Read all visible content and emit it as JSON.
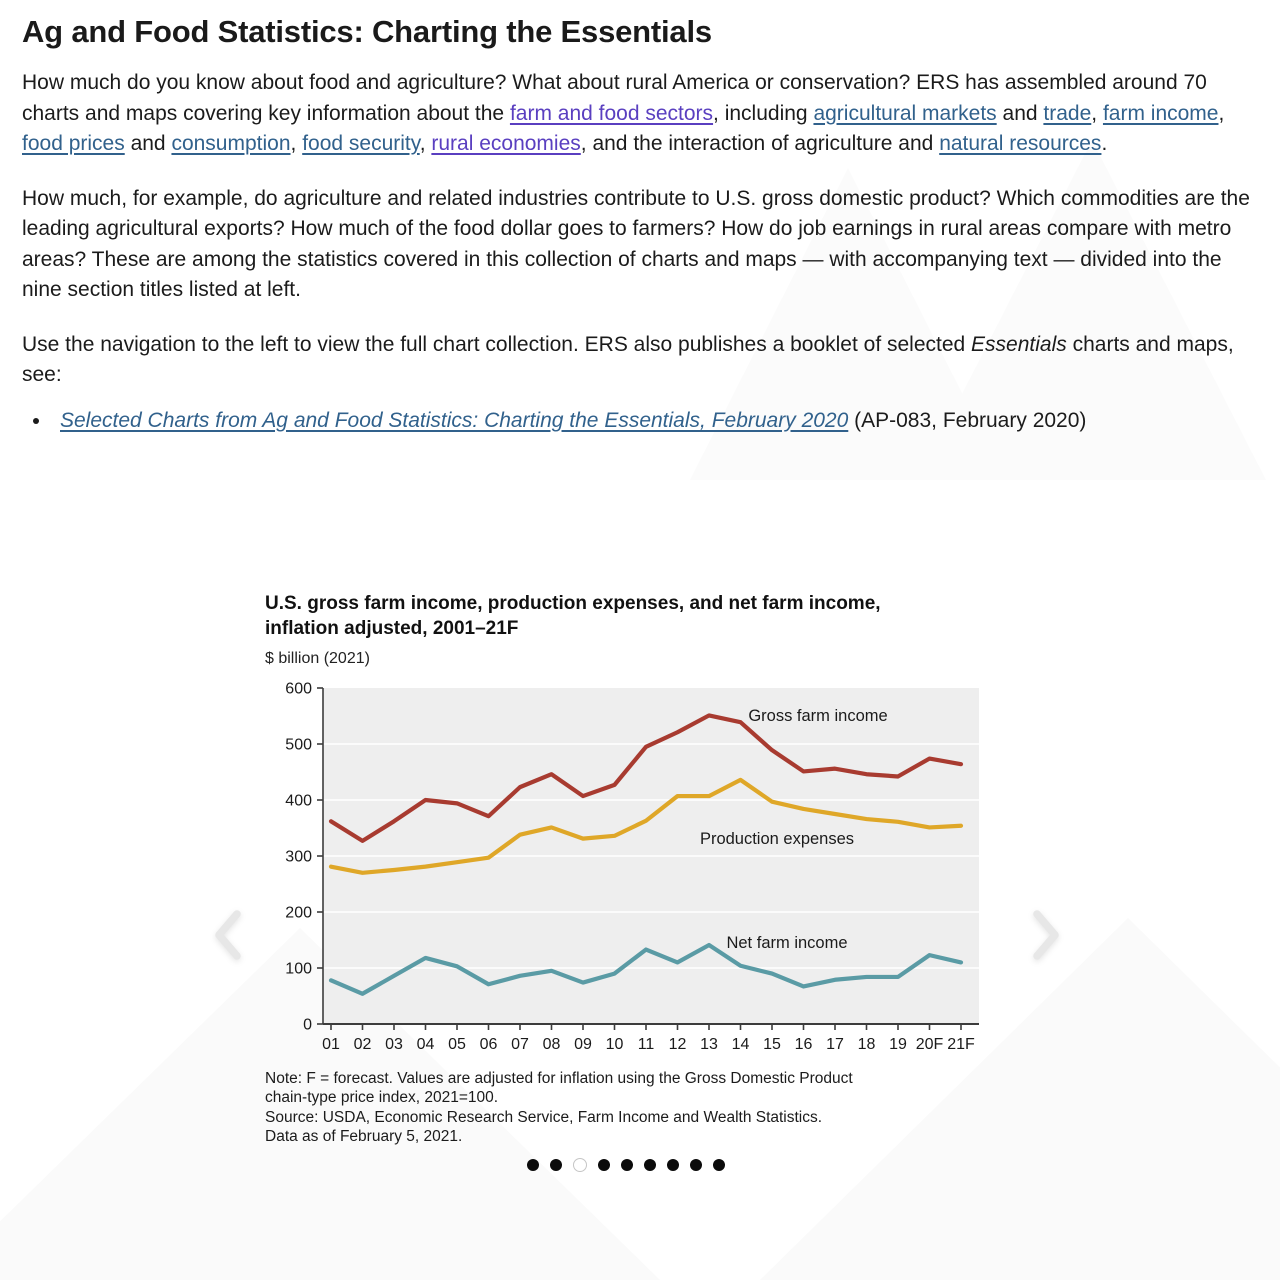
{
  "page_heading": "Ag and Food Statistics: Charting the Essentials",
  "paragraphs": {
    "intro": {
      "runs": [
        {
          "type": "text",
          "text": "How much do you know about food and agriculture? What about rural America or conservation? ERS has assembled around 70 charts and maps covering key information about the "
        },
        {
          "type": "visited-link",
          "text": "farm and food sectors"
        },
        {
          "type": "text",
          "text": ", including "
        },
        {
          "type": "link",
          "text": "agricultural markets"
        },
        {
          "type": "text",
          "text": " and "
        },
        {
          "type": "link",
          "text": "trade"
        },
        {
          "type": "text",
          "text": ", "
        },
        {
          "type": "link",
          "text": "farm income"
        },
        {
          "type": "text",
          "text": ", "
        },
        {
          "type": "link",
          "text": "food prices"
        },
        {
          "type": "text",
          "text": " and "
        },
        {
          "type": "link",
          "text": "consumption"
        },
        {
          "type": "text",
          "text": ", "
        },
        {
          "type": "link",
          "text": "food security"
        },
        {
          "type": "text",
          "text": ", "
        },
        {
          "type": "visited-link",
          "text": "rural economies"
        },
        {
          "type": "text",
          "text": ", and the interaction of agriculture and "
        },
        {
          "type": "link",
          "text": "natural resources"
        },
        {
          "type": "text",
          "text": "."
        }
      ]
    },
    "second": {
      "runs": [
        {
          "type": "text",
          "text": "How much, for example, do agriculture and related industries contribute to U.S. gross domestic product? Which commodities are the leading agricultural exports? How much of the food dollar goes to farmers? How do job earnings in rural areas compare with metro areas? These are among the statistics covered in this collection of charts and maps — with accompanying text — divided into the nine section titles listed at left."
        }
      ]
    },
    "third": {
      "runs": [
        {
          "type": "text",
          "text": "Use the navigation to the left to view the full chart collection. ERS also publishes a booklet of selected "
        },
        {
          "type": "italic",
          "text": "Essentials"
        },
        {
          "type": "text",
          "text": " charts and maps, see:"
        }
      ]
    },
    "bullet": {
      "runs": [
        {
          "type": "italic-link",
          "text": "Selected Charts from Ag and Food Statistics: Charting the Essentials, February 2020"
        },
        {
          "type": "text",
          "text": " (AP-083, February 2020)"
        }
      ]
    }
  },
  "chart": {
    "title_lines": [
      "U.S. gross farm income, production expenses, and net farm income,",
      "inflation adjusted, 2001–21F"
    ],
    "unit_label": "$ billion (2021)",
    "note_lines": [
      "Note: F = forecast. Values are adjusted for inflation using the Gross Domestic Product",
      "chain-type price index, 2021=100.",
      "Source: USDA, Economic Research Service, Farm Income and Wealth Statistics.",
      "Data as of February 5, 2021."
    ]
  },
  "chart_data": {
    "type": "line",
    "title": "U.S. gross farm income, production expenses, and net farm income, inflation adjusted, 2001–21F",
    "xlabel": "",
    "ylabel": "$ billion (2021)",
    "categories": [
      "01",
      "02",
      "03",
      "04",
      "05",
      "06",
      "07",
      "08",
      "09",
      "10",
      "11",
      "12",
      "13",
      "14",
      "15",
      "16",
      "17",
      "18",
      "19",
      "20F",
      "21F"
    ],
    "ylim": [
      0,
      600
    ],
    "yticks": [
      0,
      100,
      200,
      300,
      400,
      500,
      600
    ],
    "grid": true,
    "label_placement": "inline",
    "plot_background": "#eeeeee",
    "series": [
      {
        "name": "Gross farm income",
        "color": "#a83b30",
        "values": [
          362,
          327,
          362,
          400,
          394,
          371,
          423,
          446,
          407,
          427,
          495,
          521,
          551,
          539,
          489,
          451,
          456,
          446,
          442,
          474,
          464
        ]
      },
      {
        "name": "Production expenses",
        "color": "#dfa728",
        "values": [
          281,
          270,
          275,
          281,
          289,
          297,
          338,
          351,
          331,
          336,
          363,
          407,
          407,
          436,
          397,
          384,
          375,
          366,
          361,
          351,
          354
        ]
      },
      {
        "name": "Net farm income",
        "color": "#5a9ba5",
        "values": [
          78,
          54,
          86,
          118,
          103,
          71,
          86,
          95,
          74,
          90,
          133,
          110,
          141,
          104,
          90,
          67,
          79,
          84,
          84,
          123,
          110
        ]
      }
    ]
  },
  "carousel": {
    "total_slides": 9,
    "current_slide": 3
  }
}
